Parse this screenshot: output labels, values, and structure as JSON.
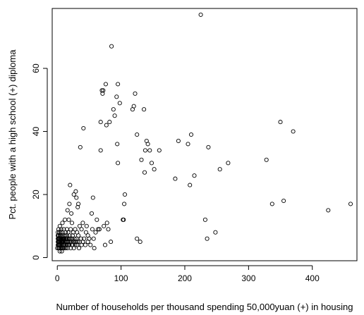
{
  "chart_data": {
    "type": "scatter",
    "xlabel": "Number of households per thousand spending 50,000yuan (+)  in housing",
    "ylabel": "Pct. people with a high school (+) diploma",
    "xlim": [
      -8,
      470
    ],
    "ylim": [
      -1,
      79
    ],
    "x_ticks": [
      0,
      100,
      200,
      300,
      400
    ],
    "y_ticks": [
      0,
      20,
      40,
      60
    ],
    "grid": false,
    "legend": "none",
    "marker": "open-circle",
    "points": [
      [
        0,
        3
      ],
      [
        1,
        4
      ],
      [
        1,
        5
      ],
      [
        1,
        6
      ],
      [
        1,
        7
      ],
      [
        1,
        8
      ],
      [
        2,
        3
      ],
      [
        2,
        4
      ],
      [
        2,
        5
      ],
      [
        2,
        6
      ],
      [
        2,
        7
      ],
      [
        2,
        9
      ],
      [
        3,
        3
      ],
      [
        3,
        4
      ],
      [
        3,
        5
      ],
      [
        3,
        6
      ],
      [
        3,
        8
      ],
      [
        4,
        2
      ],
      [
        4,
        4
      ],
      [
        4,
        5
      ],
      [
        4,
        6
      ],
      [
        4,
        7
      ],
      [
        4,
        10
      ],
      [
        5,
        3
      ],
      [
        5,
        4
      ],
      [
        5,
        5
      ],
      [
        5,
        6
      ],
      [
        5,
        7
      ],
      [
        5,
        8
      ],
      [
        6,
        3
      ],
      [
        6,
        5
      ],
      [
        6,
        6
      ],
      [
        6,
        9
      ],
      [
        7,
        2
      ],
      [
        7,
        4
      ],
      [
        7,
        5
      ],
      [
        7,
        6
      ],
      [
        7,
        7
      ],
      [
        8,
        3
      ],
      [
        8,
        4
      ],
      [
        8,
        5
      ],
      [
        8,
        8
      ],
      [
        8,
        11
      ],
      [
        9,
        3
      ],
      [
        9,
        5
      ],
      [
        9,
        6
      ],
      [
        9,
        7
      ],
      [
        10,
        4
      ],
      [
        10,
        5
      ],
      [
        10,
        6
      ],
      [
        10,
        9
      ],
      [
        11,
        3
      ],
      [
        11,
        4
      ],
      [
        11,
        6
      ],
      [
        12,
        5
      ],
      [
        12,
        7
      ],
      [
        12,
        12
      ],
      [
        13,
        3
      ],
      [
        13,
        4
      ],
      [
        13,
        6
      ],
      [
        13,
        8
      ],
      [
        14,
        5
      ],
      [
        14,
        6
      ],
      [
        15,
        4
      ],
      [
        15,
        7
      ],
      [
        15,
        9
      ],
      [
        16,
        3
      ],
      [
        16,
        5
      ],
      [
        16,
        6
      ],
      [
        16,
        15
      ],
      [
        17,
        4
      ],
      [
        17,
        8
      ],
      [
        18,
        5
      ],
      [
        18,
        6
      ],
      [
        18,
        12
      ],
      [
        19,
        4
      ],
      [
        19,
        7
      ],
      [
        19,
        17
      ],
      [
        20,
        5
      ],
      [
        20,
        6
      ],
      [
        20,
        23
      ],
      [
        21,
        3
      ],
      [
        21,
        9
      ],
      [
        22,
        5
      ],
      [
        22,
        14
      ],
      [
        23,
        4
      ],
      [
        23,
        6
      ],
      [
        23,
        11
      ],
      [
        24,
        4
      ],
      [
        24,
        7
      ],
      [
        25,
        5
      ],
      [
        25,
        8
      ],
      [
        26,
        3
      ],
      [
        26,
        20
      ],
      [
        27,
        5
      ],
      [
        27,
        6
      ],
      [
        28,
        4
      ],
      [
        28,
        9
      ],
      [
        29,
        5
      ],
      [
        29,
        21
      ],
      [
        30,
        6
      ],
      [
        30,
        19
      ],
      [
        31,
        4
      ],
      [
        31,
        8
      ],
      [
        32,
        5
      ],
      [
        32,
        16
      ],
      [
        33,
        7
      ],
      [
        33,
        17
      ],
      [
        34,
        3
      ],
      [
        35,
        5
      ],
      [
        35,
        10
      ],
      [
        36,
        35
      ],
      [
        37,
        6
      ],
      [
        38,
        4
      ],
      [
        38,
        9
      ],
      [
        40,
        5
      ],
      [
        40,
        11
      ],
      [
        41,
        41
      ],
      [
        42,
        6
      ],
      [
        44,
        4
      ],
      [
        45,
        8
      ],
      [
        46,
        10
      ],
      [
        48,
        5
      ],
      [
        48,
        7
      ],
      [
        50,
        6
      ],
      [
        52,
        4
      ],
      [
        54,
        14
      ],
      [
        55,
        9
      ],
      [
        56,
        19
      ],
      [
        57,
        6
      ],
      [
        58,
        3
      ],
      [
        60,
        8
      ],
      [
        62,
        12
      ],
      [
        64,
        9
      ],
      [
        66,
        9
      ],
      [
        68,
        34
      ],
      [
        68,
        43
      ],
      [
        70,
        53
      ],
      [
        71,
        52
      ],
      [
        72,
        53
      ],
      [
        73,
        10
      ],
      [
        75,
        4
      ],
      [
        76,
        55
      ],
      [
        77,
        42
      ],
      [
        78,
        11
      ],
      [
        80,
        9
      ],
      [
        82,
        43
      ],
      [
        84,
        5
      ],
      [
        85,
        67
      ],
      [
        88,
        47
      ],
      [
        90,
        45
      ],
      [
        93,
        51
      ],
      [
        94,
        36
      ],
      [
        95,
        30
      ],
      [
        95,
        55
      ],
      [
        98,
        49
      ],
      [
        103,
        12
      ],
      [
        104,
        12
      ],
      [
        105,
        17
      ],
      [
        106,
        20
      ],
      [
        118,
        47
      ],
      [
        120,
        48
      ],
      [
        122,
        52
      ],
      [
        125,
        39
      ],
      [
        125,
        6
      ],
      [
        130,
        5
      ],
      [
        132,
        31
      ],
      [
        136,
        47
      ],
      [
        137,
        27
      ],
      [
        138,
        34
      ],
      [
        140,
        37
      ],
      [
        142,
        36
      ],
      [
        145,
        34
      ],
      [
        148,
        30
      ],
      [
        152,
        28
      ],
      [
        160,
        34
      ],
      [
        185,
        25
      ],
      [
        190,
        37
      ],
      [
        205,
        36
      ],
      [
        208,
        23
      ],
      [
        210,
        39
      ],
      [
        215,
        26
      ],
      [
        225,
        77
      ],
      [
        232,
        12
      ],
      [
        235,
        6
      ],
      [
        237,
        35
      ],
      [
        248,
        8
      ],
      [
        255,
        28
      ],
      [
        268,
        30
      ],
      [
        328,
        31
      ],
      [
        337,
        17
      ],
      [
        350,
        43
      ],
      [
        355,
        18
      ],
      [
        370,
        40
      ],
      [
        425,
        15
      ],
      [
        460,
        17
      ]
    ]
  }
}
